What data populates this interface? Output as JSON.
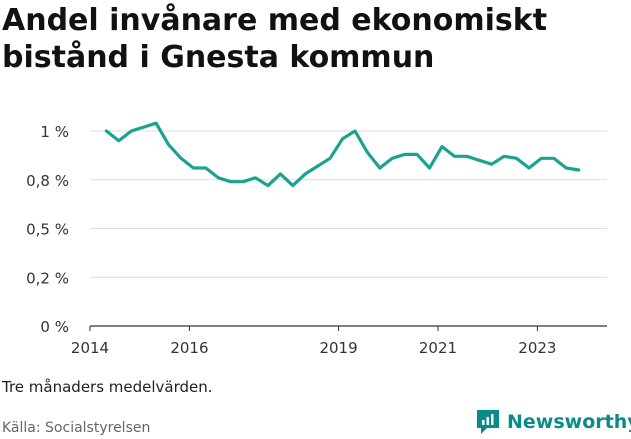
{
  "title": "Andel invånare med ekonomiskt bistånd i Gnesta kommun",
  "note": "Tre månaders medelvärden.",
  "source": "Källa: Socialstyrelsen",
  "brand": {
    "name": "Newsworthy",
    "icon": "newsworthy-logo-icon"
  },
  "colors": {
    "line": "#1aa391",
    "grid": "#dddddd",
    "axis": "#333333",
    "text": "#333333"
  },
  "chart_data": {
    "type": "line",
    "x_unit": "year",
    "xlim": [
      2014.0,
      2024.4
    ],
    "ylim": [
      0,
      1.0
    ],
    "grid": "horizontal",
    "y_ticks": [
      {
        "value": 0,
        "label": "0 %"
      },
      {
        "value": 0.25,
        "label": "0,2 %"
      },
      {
        "value": 0.5,
        "label": "0,5 %"
      },
      {
        "value": 0.75,
        "label": "0,8 %"
      },
      {
        "value": 1.0,
        "label": "1 %"
      }
    ],
    "x_ticks": [
      {
        "value": 2014,
        "label": "2014"
      },
      {
        "value": 2016,
        "label": "2016"
      },
      {
        "value": 2019,
        "label": "2019"
      },
      {
        "value": 2021,
        "label": "2021"
      },
      {
        "value": 2023,
        "label": "2023"
      }
    ],
    "series": [
      {
        "x": [
          2014.33,
          2014.58,
          2014.83,
          2015.08,
          2015.33,
          2015.58,
          2015.83,
          2016.08,
          2016.33,
          2016.58,
          2016.83,
          2017.08,
          2017.33,
          2017.58,
          2017.83,
          2018.08,
          2018.33,
          2018.58,
          2018.83,
          2019.08,
          2019.33,
          2019.58,
          2019.83,
          2020.08,
          2020.33,
          2020.58,
          2020.83,
          2021.08,
          2021.33,
          2021.58,
          2021.83,
          2022.08,
          2022.33,
          2022.58,
          2022.83,
          2023.08,
          2023.33,
          2023.58,
          2023.83
        ],
        "values": [
          1.0,
          0.95,
          1.0,
          1.02,
          1.04,
          0.93,
          0.86,
          0.81,
          0.81,
          0.76,
          0.74,
          0.74,
          0.76,
          0.72,
          0.78,
          0.72,
          0.78,
          0.82,
          0.86,
          0.96,
          1.0,
          0.89,
          0.81,
          0.86,
          0.88,
          0.88,
          0.81,
          0.92,
          0.87,
          0.87,
          0.85,
          0.83,
          0.87,
          0.86,
          0.81,
          0.86,
          0.86,
          0.81,
          0.8
        ]
      }
    ]
  }
}
